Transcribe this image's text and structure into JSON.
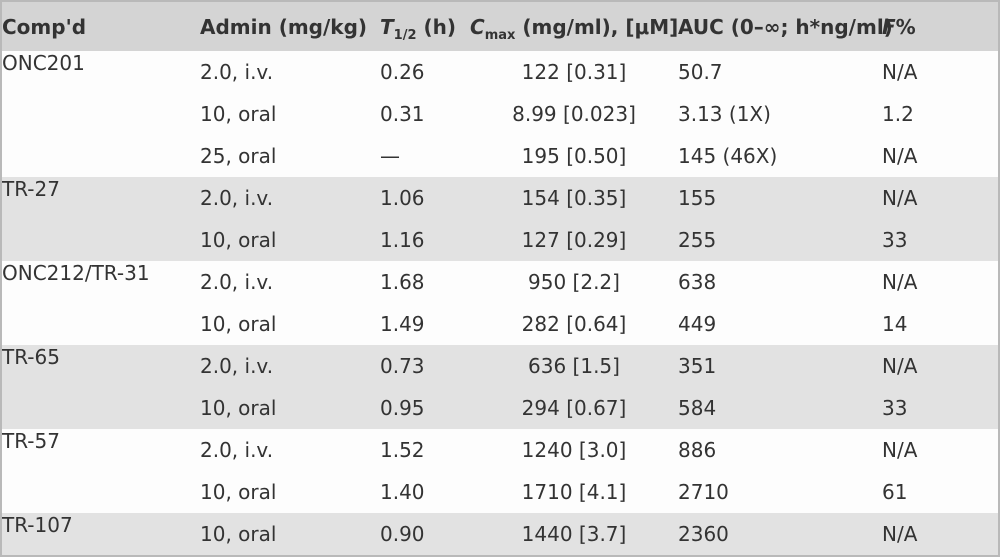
{
  "colors": {
    "header_bg": "#d4d4d4",
    "band_bg": "#e2e2e2",
    "row_bg": "#fdfdfd",
    "text": "#333333",
    "frame_border": "#b9b9b9"
  },
  "table": {
    "columns": {
      "compound": {
        "label": "Comp'd"
      },
      "admin": {
        "label": "Admin (mg/kg)"
      },
      "t_half": {
        "symbol": "T",
        "sub": "1/2",
        "rest": " (h)"
      },
      "cmax": {
        "symbol": "C",
        "sub": "max",
        "rest": " (mg/ml), [μM]"
      },
      "auc": {
        "label": "AUC (0–∞; h*ng/ml)"
      },
      "f_percent": {
        "symbol": "F",
        "rest": "%"
      }
    },
    "groups": [
      {
        "compound": "ONC201",
        "shaded": false,
        "rows": [
          {
            "admin": "2.0, i.v.",
            "t_half": "0.26",
            "cmax": "122 [0.31]",
            "auc": "50.7",
            "f": "N/A"
          },
          {
            "admin": "10, oral",
            "t_half": "0.31",
            "cmax": "8.99 [0.023]",
            "auc": "3.13 (1X)",
            "f": "1.2"
          },
          {
            "admin": "25, oral",
            "t_half": "—",
            "cmax": "195 [0.50]",
            "auc": "145 (46X)",
            "f": "N/A"
          }
        ]
      },
      {
        "compound": "TR-27",
        "shaded": true,
        "rows": [
          {
            "admin": "2.0, i.v.",
            "t_half": "1.06",
            "cmax": "154 [0.35]",
            "auc": "155",
            "f": "N/A"
          },
          {
            "admin": "10, oral",
            "t_half": "1.16",
            "cmax": "127 [0.29]",
            "auc": "255",
            "f": "33"
          }
        ]
      },
      {
        "compound": "ONC212/TR-31",
        "shaded": false,
        "rows": [
          {
            "admin": "2.0, i.v.",
            "t_half": "1.68",
            "cmax": "950 [2.2]",
            "auc": "638",
            "f": "N/A"
          },
          {
            "admin": "10, oral",
            "t_half": "1.49",
            "cmax": "282 [0.64]",
            "auc": "449",
            "f": "14"
          }
        ]
      },
      {
        "compound": "TR-65",
        "shaded": true,
        "rows": [
          {
            "admin": "2.0, i.v.",
            "t_half": "0.73",
            "cmax": "636 [1.5]",
            "auc": "351",
            "f": "N/A"
          },
          {
            "admin": "10, oral",
            "t_half": "0.95",
            "cmax": "294 [0.67]",
            "auc": "584",
            "f": "33"
          }
        ]
      },
      {
        "compound": "TR-57",
        "shaded": false,
        "rows": [
          {
            "admin": "2.0, i.v.",
            "t_half": "1.52",
            "cmax": "1240 [3.0]",
            "auc": "886",
            "f": "N/A"
          },
          {
            "admin": "10, oral",
            "t_half": "1.40",
            "cmax": "1710 [4.1]",
            "auc": "2710",
            "f": "61"
          }
        ]
      },
      {
        "compound": "TR-107",
        "shaded": true,
        "rows": [
          {
            "admin": "10, oral",
            "t_half": "0.90",
            "cmax": "1440 [3.7]",
            "auc": "2360",
            "f": "N/A"
          }
        ]
      }
    ]
  }
}
